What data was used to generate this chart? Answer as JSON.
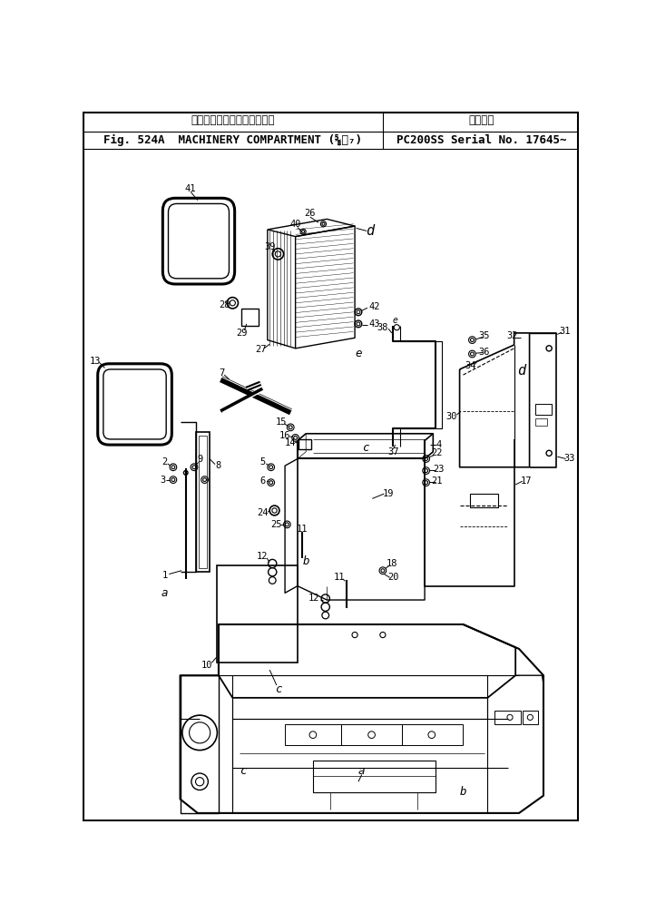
{
  "title_jp": "マシナリ　コンパートメント",
  "title_en": "Fig. 524A  MACHINERY COMPARTMENT (⅝⁄₇)",
  "title_right_jp": "適用号機",
  "title_right_en": "PC200SS Serial No. 17645∼",
  "bg_color": "#ffffff",
  "line_color": "#000000",
  "fig_width": 7.12,
  "fig_height": 10.17,
  "dpi": 100
}
